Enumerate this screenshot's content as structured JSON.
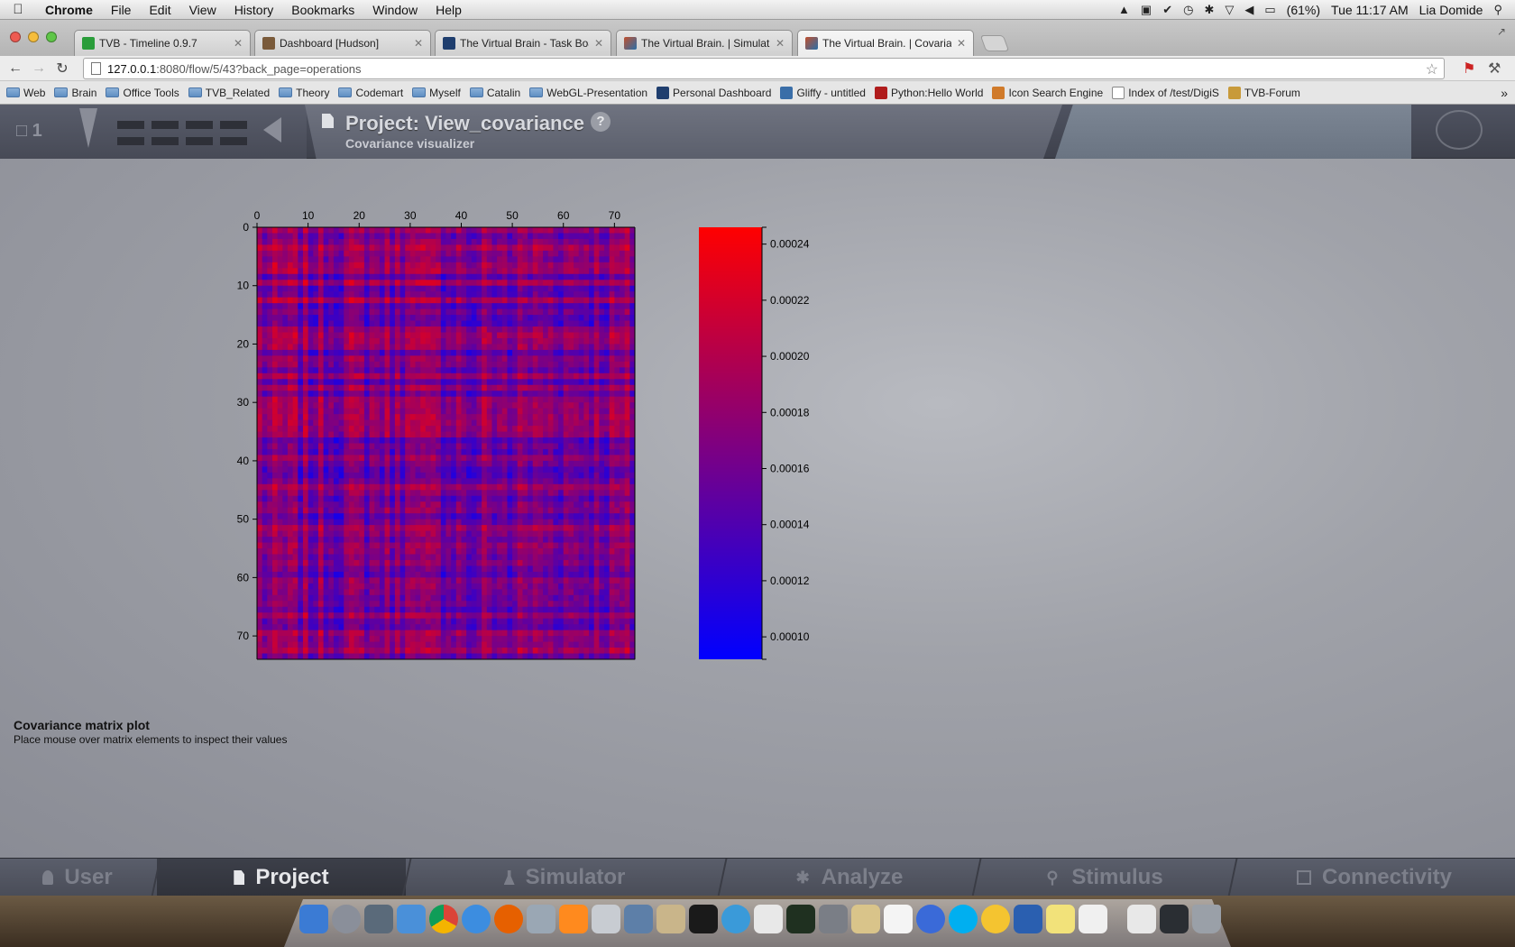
{
  "menubar": {
    "app": "Chrome",
    "items": [
      "File",
      "Edit",
      "View",
      "History",
      "Bookmarks",
      "Window",
      "Help"
    ],
    "battery": "(61%)",
    "clock": "Tue 11:17 AM",
    "user": "Lia Domide"
  },
  "tabs": [
    {
      "label": "TVB - Timeline 0.9.7",
      "icon": "timeline-favicon",
      "color": "#2a9d3a"
    },
    {
      "label": "Dashboard [Hudson]",
      "icon": "hudson-favicon",
      "color": "#7a5a3a"
    },
    {
      "label": "The Virtual Brain - Task Boar",
      "icon": "tvb-person-favicon",
      "color": "#1f3e6e"
    },
    {
      "label": "The Virtual Brain. | Simulatio",
      "icon": "tvb-favicon",
      "color": "#c1502e"
    },
    {
      "label": "The Virtual Brain. | Covarian",
      "icon": "tvb-favicon",
      "color": "#c1502e"
    }
  ],
  "url": {
    "host": "127.0.0.1",
    "path": ":8080/flow/5/43?back_page=operations"
  },
  "bookmarks": [
    {
      "label": "Web",
      "type": "folder"
    },
    {
      "label": "Brain",
      "type": "folder"
    },
    {
      "label": "Office Tools",
      "type": "folder"
    },
    {
      "label": "TVB_Related",
      "type": "folder"
    },
    {
      "label": "Theory",
      "type": "folder"
    },
    {
      "label": "Codemart",
      "type": "folder"
    },
    {
      "label": "Myself",
      "type": "folder"
    },
    {
      "label": "Catalin",
      "type": "folder"
    },
    {
      "label": "WebGL-Presentation",
      "type": "folder"
    },
    {
      "label": "Personal Dashboard",
      "type": "link",
      "color": "#1f3e6e"
    },
    {
      "label": "Gliffy - untitled",
      "type": "link",
      "color": "#3a6ea8"
    },
    {
      "label": "Python:Hello World",
      "type": "link",
      "color": "#b01c1c"
    },
    {
      "label": "Icon Search Engine",
      "type": "link",
      "color": "#d07a2a"
    },
    {
      "label": "Index of /test/DigiS",
      "type": "link",
      "color": "#ffffff"
    },
    {
      "label": "TVB-Forum",
      "type": "link",
      "color": "#c89a3a"
    }
  ],
  "header": {
    "project_count": "1",
    "title": "Project: View_covariance",
    "subtitle": "Covariance visualizer",
    "help": "?"
  },
  "chart_data": {
    "type": "heatmap",
    "title": "",
    "x_ticks": [
      0,
      10,
      20,
      30,
      40,
      50,
      60,
      70
    ],
    "y_ticks": [
      0,
      10,
      20,
      30,
      40,
      50,
      60,
      70
    ],
    "xlim": [
      0,
      74
    ],
    "ylim": [
      0,
      74
    ],
    "size": 74,
    "colormap": [
      "#0000ff",
      "#ff0000"
    ],
    "colorbar_ticks": [
      "0.00010",
      "0.00012",
      "0.00014",
      "0.00016",
      "0.00018",
      "0.00020",
      "0.00022",
      "0.00024"
    ],
    "colorbar_range": [
      9.2e-05,
      0.000246
    ]
  },
  "caption": {
    "title": "Covariance matrix plot",
    "text": "Place mouse over matrix elements to inspect their values"
  },
  "bottomnav": [
    {
      "label": "User",
      "active": false
    },
    {
      "label": "Project",
      "active": true
    },
    {
      "label": "Simulator",
      "active": false
    },
    {
      "label": "Analyze",
      "active": false
    },
    {
      "label": "Stimulus",
      "active": false
    },
    {
      "label": "Connectivity",
      "active": false
    }
  ]
}
